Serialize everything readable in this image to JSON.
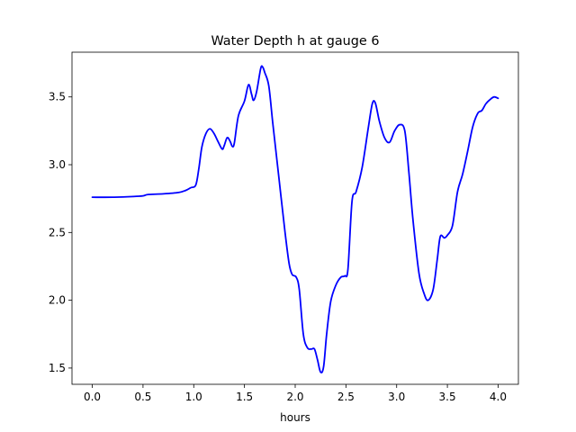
{
  "chart_data": {
    "type": "line",
    "title": "Water Depth h at gauge 6",
    "xlabel": "hours",
    "ylabel": "",
    "xlim": [
      -0.2,
      4.2
    ],
    "ylim": [
      1.38,
      3.83
    ],
    "xticks": [
      0.0,
      0.5,
      1.0,
      1.5,
      2.0,
      2.5,
      3.0,
      3.5,
      4.0
    ],
    "xtick_labels": [
      "0.0",
      "0.5",
      "1.0",
      "1.5",
      "2.0",
      "2.5",
      "3.0",
      "3.5",
      "4.0"
    ],
    "yticks": [
      1.5,
      2.0,
      2.5,
      3.0,
      3.5
    ],
    "ytick_labels": [
      "1.5",
      "2.0",
      "2.5",
      "3.0",
      "3.5"
    ],
    "grid": false,
    "legend": "none",
    "series": [
      {
        "color": "#0000ff",
        "points": [
          [
            0.0,
            2.76
          ],
          [
            0.2,
            2.76
          ],
          [
            0.4,
            2.765
          ],
          [
            0.5,
            2.77
          ],
          [
            0.55,
            2.78
          ],
          [
            0.7,
            2.785
          ],
          [
            0.85,
            2.795
          ],
          [
            0.92,
            2.81
          ],
          [
            0.97,
            2.83
          ],
          [
            1.02,
            2.85
          ],
          [
            1.05,
            2.97
          ],
          [
            1.08,
            3.13
          ],
          [
            1.12,
            3.23
          ],
          [
            1.16,
            3.265
          ],
          [
            1.2,
            3.23
          ],
          [
            1.24,
            3.17
          ],
          [
            1.28,
            3.115
          ],
          [
            1.3,
            3.14
          ],
          [
            1.33,
            3.2
          ],
          [
            1.36,
            3.17
          ],
          [
            1.38,
            3.135
          ],
          [
            1.4,
            3.16
          ],
          [
            1.44,
            3.36
          ],
          [
            1.5,
            3.47
          ],
          [
            1.54,
            3.59
          ],
          [
            1.57,
            3.52
          ],
          [
            1.59,
            3.475
          ],
          [
            1.62,
            3.54
          ],
          [
            1.66,
            3.71
          ],
          [
            1.68,
            3.72
          ],
          [
            1.7,
            3.68
          ],
          [
            1.74,
            3.58
          ],
          [
            1.78,
            3.3
          ],
          [
            1.84,
            2.9
          ],
          [
            1.9,
            2.5
          ],
          [
            1.94,
            2.27
          ],
          [
            1.97,
            2.19
          ],
          [
            2.01,
            2.17
          ],
          [
            2.04,
            2.08
          ],
          [
            2.08,
            1.75
          ],
          [
            2.12,
            1.65
          ],
          [
            2.16,
            1.64
          ],
          [
            2.19,
            1.64
          ],
          [
            2.22,
            1.56
          ],
          [
            2.25,
            1.47
          ],
          [
            2.28,
            1.51
          ],
          [
            2.31,
            1.75
          ],
          [
            2.35,
            1.99
          ],
          [
            2.4,
            2.11
          ],
          [
            2.45,
            2.17
          ],
          [
            2.49,
            2.18
          ],
          [
            2.52,
            2.23
          ],
          [
            2.56,
            2.73
          ],
          [
            2.6,
            2.8
          ],
          [
            2.66,
            2.98
          ],
          [
            2.72,
            3.27
          ],
          [
            2.76,
            3.45
          ],
          [
            2.79,
            3.455
          ],
          [
            2.83,
            3.32
          ],
          [
            2.88,
            3.2
          ],
          [
            2.93,
            3.165
          ],
          [
            2.98,
            3.25
          ],
          [
            3.03,
            3.295
          ],
          [
            3.08,
            3.25
          ],
          [
            3.12,
            2.95
          ],
          [
            3.16,
            2.6
          ],
          [
            3.22,
            2.2
          ],
          [
            3.27,
            2.05
          ],
          [
            3.31,
            2.0
          ],
          [
            3.36,
            2.08
          ],
          [
            3.4,
            2.3
          ],
          [
            3.43,
            2.47
          ],
          [
            3.47,
            2.46
          ],
          [
            3.5,
            2.48
          ],
          [
            3.55,
            2.55
          ],
          [
            3.6,
            2.8
          ],
          [
            3.65,
            2.93
          ],
          [
            3.7,
            3.1
          ],
          [
            3.75,
            3.28
          ],
          [
            3.8,
            3.38
          ],
          [
            3.84,
            3.4
          ],
          [
            3.88,
            3.45
          ],
          [
            3.92,
            3.48
          ],
          [
            3.96,
            3.5
          ],
          [
            4.0,
            3.49
          ]
        ]
      }
    ]
  }
}
